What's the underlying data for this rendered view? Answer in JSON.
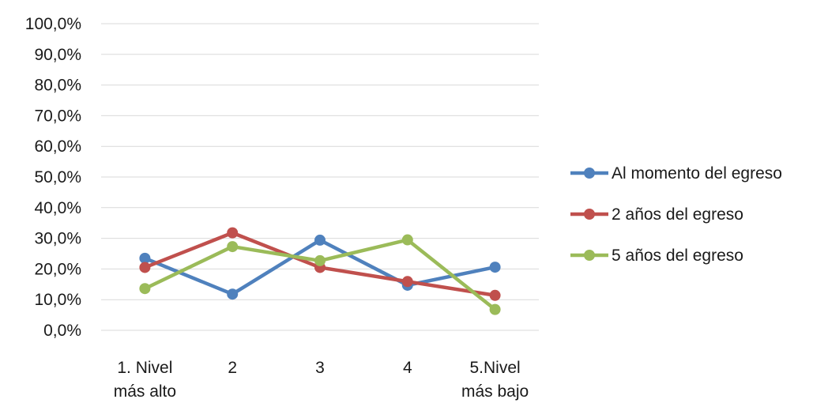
{
  "chart_data": {
    "type": "line",
    "y_ticks": [
      "0,0%",
      "10,0%",
      "20,0%",
      "30,0%",
      "40,0%",
      "50,0%",
      "60,0%",
      "70,0%",
      "80,0%",
      "90,0%",
      "100,0%"
    ],
    "ylim": [
      0,
      100
    ],
    "grid": true,
    "legend_position": "right",
    "categories": [
      [
        "1. Nivel",
        "más alto"
      ],
      [
        "2"
      ],
      [
        "3"
      ],
      [
        "4"
      ],
      [
        "5.Nivel",
        "más bajo"
      ]
    ],
    "series": [
      {
        "name": "Al momento del egreso",
        "color": "#4f81bd",
        "values": [
          23.5,
          11.8,
          29.4,
          14.7,
          20.6
        ]
      },
      {
        "name": "2 años del egreso",
        "color": "#c0504d",
        "values": [
          20.5,
          31.8,
          20.5,
          15.9,
          11.4
        ]
      },
      {
        "name": "5 años del egreso",
        "color": "#9bbb59",
        "values": [
          13.6,
          27.3,
          22.7,
          29.5,
          6.8
        ]
      }
    ]
  }
}
